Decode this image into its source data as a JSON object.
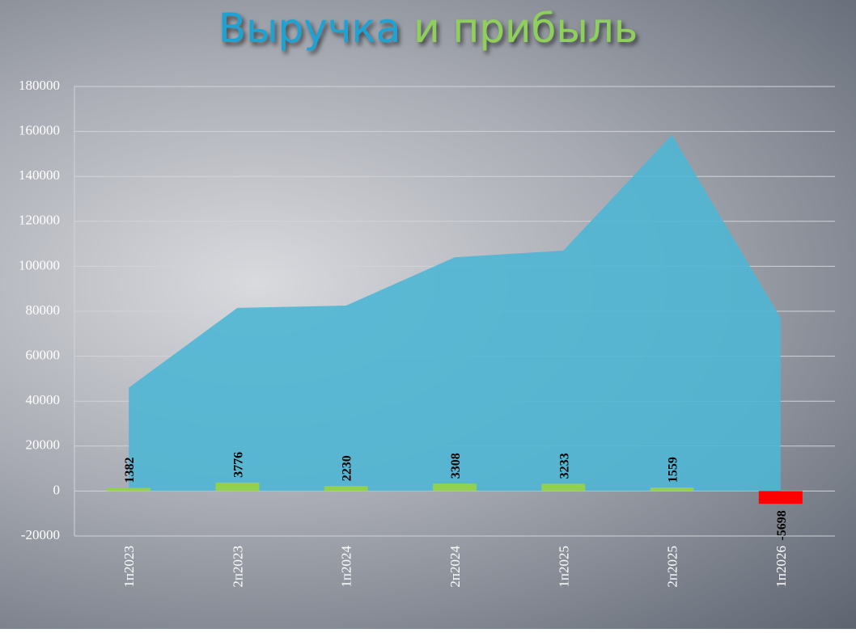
{
  "chart_data": {
    "type": "combo",
    "title": [
      "Выручка",
      "и прибыль"
    ],
    "title_colors": [
      "#1fa3d4",
      "#8fd05a"
    ],
    "categories": [
      "1п2023",
      "2п2023",
      "1п2024",
      "2п2024",
      "1п2025",
      "2п2025",
      "1п2026"
    ],
    "series": [
      {
        "type": "area",
        "color": "#4fb6d4",
        "values": [
          46000,
          81500,
          82500,
          104000,
          107000,
          158500,
          77000
        ]
      },
      {
        "type": "bar",
        "color": "#92d050",
        "negative_color": "#ff0000",
        "values": [
          1382,
          3776,
          2230,
          3308,
          3233,
          1559,
          -5698
        ]
      }
    ],
    "ylim": [
      -20000,
      180000
    ],
    "yticks": [
      -20000,
      0,
      20000,
      40000,
      60000,
      80000,
      100000,
      120000,
      140000,
      160000,
      180000
    ],
    "grid": true
  }
}
